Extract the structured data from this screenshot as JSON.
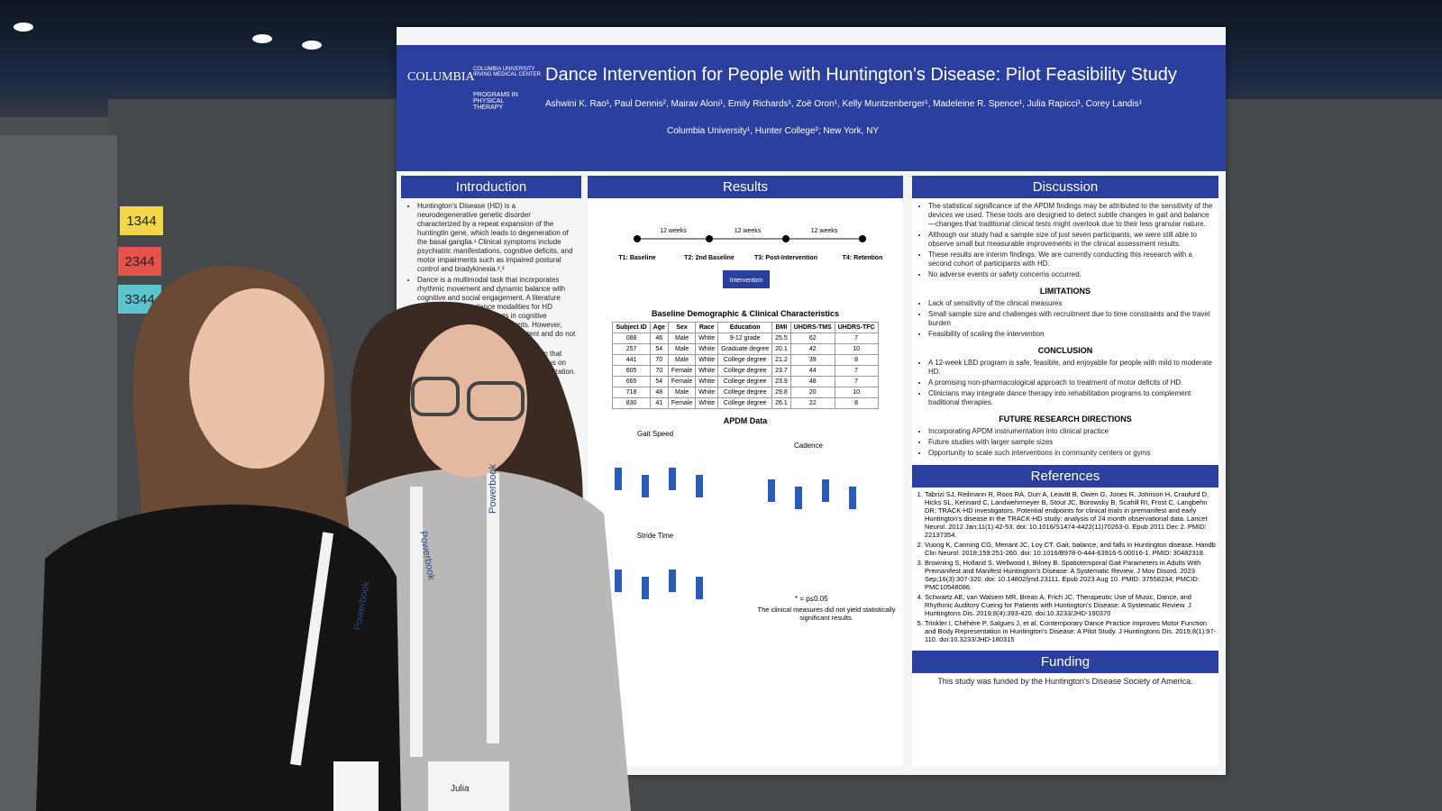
{
  "tags": [
    "1344",
    "2344",
    "3344"
  ],
  "poster": {
    "logo": "COLUMBIA",
    "logo_sub": "COLUMBIA UNIVERSITY IRVING MEDICAL CENTER",
    "program": "PROGRAMS IN PHYSICAL THERAPY",
    "title": "Dance Intervention for People with Huntington's Disease: Pilot Feasibility Study",
    "authors": "Ashwini K. Rao¹, Paul Dennis², Mairav Aloni¹, Emily Richards¹, Zoë Oron¹, Kelly Muntzenberger¹, Madeleine R. Spence¹, Julia Rapicci¹, Corey Landis¹",
    "affiliations": "Columbia University¹, Hunter College²; New York, NY",
    "introduction": {
      "heading": "Introduction",
      "bullets": [
        "Huntington's Disease (HD) is a neurodegenerative genetic disorder characterized by a repeat expansion of the huntingtin gene, which leads to degeneration of the basal ganglia.¹ Clinical symptoms include psychiatric manifestations, cognitive deficits, and motor impairments such as impaired postural control and bradykinesia.²,³",
        "Dance is a multimodal task that incorporates rhythmic movement and dynamic balance with cognitive and social engagement. A literature review on various dance modalities for HD demonstrated improvements in cognitive functioning and motor impairments. However, results across studies are inconsistent and do not demonstrate long-term effect.⁴,⁵",
        "Laban-Bartenieff is a specific dance form that involves the whole body with a strong focus on rhythmic sequencing, balance, body organization."
      ]
    },
    "results": {
      "heading": "Results",
      "timeline": [
        "T1: Baseline",
        "T2: 2nd Baseline",
        "T3: Post-Intervention",
        "T4: Retention"
      ],
      "weeks": [
        "12 weeks",
        "12 weeks",
        "12 weeks"
      ],
      "intervention": "Intervention",
      "table": {
        "title": "Baseline Demographic & Clinical Characteristics",
        "columns": [
          "Subject ID",
          "Age",
          "Sex",
          "Race",
          "Education",
          "BMI",
          "UHDRS-TMS",
          "UHDRS-TFC"
        ],
        "rows": [
          [
            "088",
            "46",
            "Male",
            "White",
            "9-12 grade",
            "25.5",
            "62",
            "7"
          ],
          [
            "257",
            "54",
            "Male",
            "White",
            "Graduate degree",
            "20.1",
            "42",
            "10"
          ],
          [
            "441",
            "70",
            "Male",
            "White",
            "College degree",
            "21.2",
            "39",
            "8"
          ],
          [
            "605",
            "70",
            "Female",
            "White",
            "College degree",
            "23.7",
            "44",
            "7"
          ],
          [
            "665",
            "54",
            "Female",
            "White",
            "College degree",
            "23.9",
            "48",
            "7"
          ],
          [
            "718",
            "48",
            "Male",
            "White",
            "College degree",
            "29.8",
            "20",
            "10"
          ],
          [
            "830",
            "41",
            "Female",
            "White",
            "College degree",
            "26.1",
            "22",
            "8"
          ]
        ]
      },
      "apdm_title": "APDM Data",
      "panels": [
        "Gait Speed",
        "Cadence",
        "Stride Time"
      ],
      "note": "* = p≤0.05",
      "caption": "The clinical measures did not yield statistically significant results."
    },
    "discussion": {
      "heading": "Discussion",
      "bullets": [
        "The statistical significance of the APDM findings may be attributed to the sensitivity of the devices we used. These tools are designed to detect subtle changes in gait and balance—changes that traditional clinical tests might overlook due to their less granular nature.",
        "Although our study had a sample size of just seven participants, we were still able to observe small but measurable improvements in the clinical assessment results.",
        "These results are interim findings. We are currently conducting this research with a second cohort of participants with HD.",
        "No adverse events or safety concerns occurred."
      ],
      "sections": [
        {
          "heading": "LIMITATIONS",
          "bullets": [
            "Lack of sensitivity of the clinical measures",
            "Small sample size and challenges with recruitment due to time constraints and the travel burden",
            "Feasibility of scaling the intervention"
          ]
        },
        {
          "heading": "CONCLUSION",
          "bullets": [
            "A 12-week LBD program is safe, feasible, and enjoyable for people with mild to moderate HD.",
            "A promising non-pharmacological approach to treatment of motor deficits of HD.",
            "Clinicians may integrate dance therapy into rehabilitation programs to complement traditional therapies."
          ]
        },
        {
          "heading": "FUTURE RESEARCH DIRECTIONS",
          "bullets": [
            "Incorporating APDM instrumentation into clinical practice",
            "Future studies with larger sample sizes",
            "Opportunity to scale such interventions in community centers or gyms"
          ]
        }
      ]
    },
    "references": {
      "heading": "References",
      "items": [
        "Tabrizi SJ, Reilmann R, Roos RA, Durr A, Leavitt B, Owen G, Jones R, Johnson H, Craufurd D, Hicks SL, Kennard C, Landwehrmeyer B, Stout JC, Borowsky B, Scahill RI, Frost C, Langbehn DR; TRACK-HD investigators. Potential endpoints for clinical trials in premanifest and early Huntington's disease in the TRACK-HD study: analysis of 24 month observational data. Lancet Neurol. 2012 Jan;11(1):42-53. doi: 10.1016/S1474-4422(11)70263-0. Epub 2011 Dec 2. PMID: 22137354.",
        "Vuong K, Canning CG, Menant JC, Loy CT. Gait, balance, and falls in Huntington disease. Handb Clin Neurol. 2018;159:251-260. doi: 10.1016/B978-0-444-63916-5.00016-1. PMID: 30482318.",
        "Browning S, Holland S, Wellwood I, Bilney B. Spatiotemporal Gait Parameters in Adults With Premanifest and Manifest Huntington's Disease: A Systematic Review. J Mov Disord. 2023 Sep;16(3):307-320. doi: 10.14802/jmd.23111. Epub 2023 Aug 10. PMID: 37558234; PMCID: PMC10548086.",
        "Schwartz AE, van Walsem MR, Brean A, Frich JC. Therapeutic Use of Music, Dance, and Rhythmic Auditory Cueing for Patients with Huntington's Disease: A Systematic Review. J Huntingtons Dis. 2019;8(4):393-420. doi:10.3233/JHD-190370",
        "Trinkler I, Chéhère P, Salgues J, et al. Contemporary Dance Practice Improves Motor Function and Body Representation in Huntington's Disease: A Pilot Study. J Huntingtons Dis. 2019;8(1):97-110. doi:10.3233/JHD-180315"
      ]
    },
    "funding": {
      "heading": "Funding",
      "text": "This study was funded by the Huntington's Disease Society of America."
    }
  },
  "lanyard_text": "Powerbook",
  "badge_name": "Julia"
}
